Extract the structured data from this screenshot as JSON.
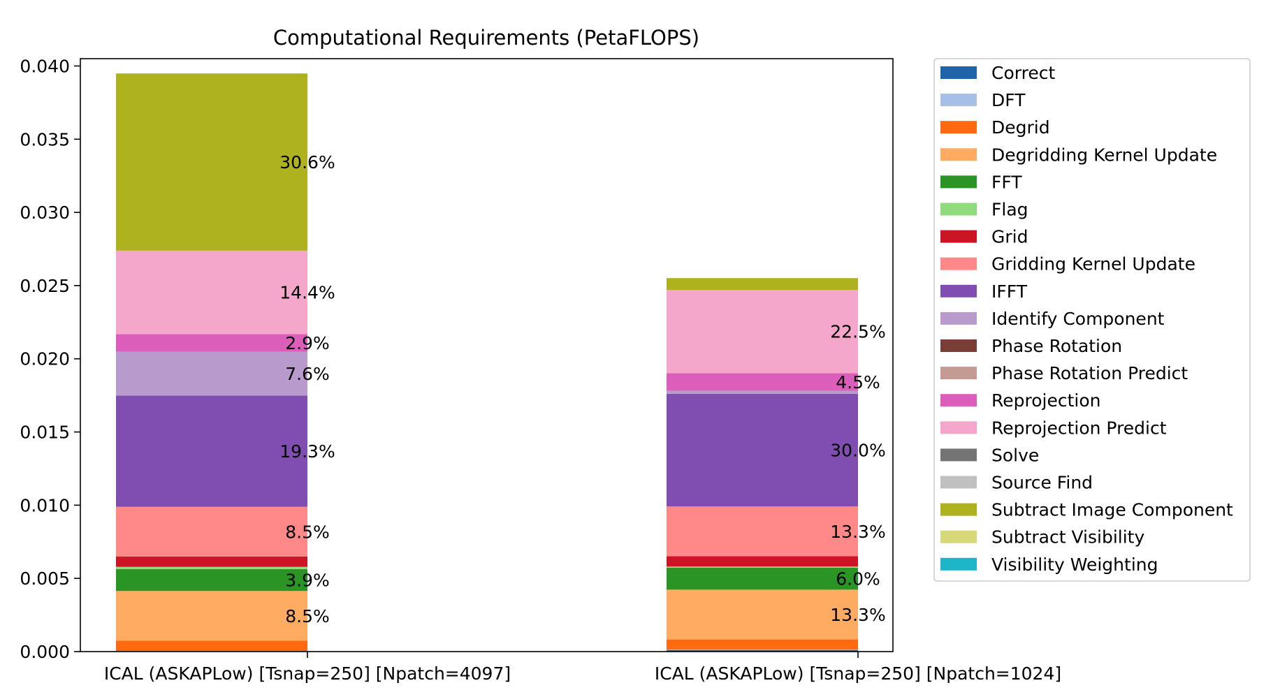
{
  "chart_data": {
    "type": "bar",
    "stacked": true,
    "title": "Computational Requirements (PetaFLOPS)",
    "xlabel": "",
    "ylabel": "",
    "ylim": [
      0,
      0.0405
    ],
    "yticks": [
      "0.000",
      "0.005",
      "0.010",
      "0.015",
      "0.020",
      "0.025",
      "0.030",
      "0.035",
      "0.040"
    ],
    "grid": false,
    "legend_position": "outside-right",
    "categories": [
      "ICAL (ASKAPLow) [Tsnap=250] [Npatch=4097]",
      "ICAL (ASKAPLow) [Tsnap=250] [Npatch=1024]"
    ],
    "series": [
      {
        "name": "Correct",
        "color": "#1f63a8",
        "values": [
          2e-05,
          0.0001
        ]
      },
      {
        "name": "DFT",
        "color": "#a5bfe6",
        "values": [
          2e-05,
          3e-05
        ]
      },
      {
        "name": "Degrid",
        "color": "#ff6a10",
        "values": [
          0.0007,
          0.0007
        ]
      },
      {
        "name": "Degridding Kernel Update",
        "color": "#ffac62",
        "values": [
          0.0034,
          0.0034
        ]
      },
      {
        "name": "FFT",
        "color": "#2a9424",
        "values": [
          0.0015,
          0.0015
        ]
      },
      {
        "name": "Flag",
        "color": "#8fdb7e",
        "values": [
          0.00015,
          8e-05
        ]
      },
      {
        "name": "Grid",
        "color": "#cc1424",
        "values": [
          0.0007,
          0.0007
        ]
      },
      {
        "name": "Gridding Kernel Update",
        "color": "#ff8888",
        "values": [
          0.0034,
          0.0034
        ]
      },
      {
        "name": "IFFT",
        "color": "#804eb0",
        "values": [
          0.0076,
          0.0077
        ]
      },
      {
        "name": "Identify Component",
        "color": "#b89bcc",
        "values": [
          0.003,
          0.0002
        ]
      },
      {
        "name": "Phase Rotation",
        "color": "#7a3e36",
        "values": [
          0.0,
          0.0
        ]
      },
      {
        "name": "Phase Rotation Predict",
        "color": "#c49a93",
        "values": [
          0.0,
          0.0
        ]
      },
      {
        "name": "Reprojection",
        "color": "#dc5ebb",
        "values": [
          0.0012,
          0.0012
        ]
      },
      {
        "name": "Reprojection Predict",
        "color": "#f4a6cb",
        "values": [
          0.0057,
          0.0057
        ]
      },
      {
        "name": "Solve",
        "color": "#747474",
        "values": [
          0.0,
          0.0
        ]
      },
      {
        "name": "Source Find",
        "color": "#c0c0c0",
        "values": [
          0.0,
          0.0
        ]
      },
      {
        "name": "Subtract Image Component",
        "color": "#adb21e",
        "values": [
          0.0121,
          0.0008
        ]
      },
      {
        "name": "Subtract Visibility",
        "color": "#d7d87a",
        "values": [
          0.0,
          0.0
        ]
      },
      {
        "name": "Visibility Weighting",
        "color": "#1fb5c8",
        "values": [
          0.0,
          0.0
        ]
      }
    ],
    "bar_labels": [
      [
        {
          "series": "Degridding Kernel Update",
          "text": "8.5%"
        },
        {
          "series": "FFT",
          "text": "3.9%"
        },
        {
          "series": "Gridding Kernel Update",
          "text": "8.5%"
        },
        {
          "series": "IFFT",
          "text": "19.3%"
        },
        {
          "series": "Identify Component",
          "text": "7.6%"
        },
        {
          "series": "Reprojection",
          "text": "2.9%"
        },
        {
          "series": "Reprojection Predict",
          "text": "14.4%"
        },
        {
          "series": "Subtract Image Component",
          "text": "30.6%"
        }
      ],
      [
        {
          "series": "Degridding Kernel Update",
          "text": "13.3%"
        },
        {
          "series": "FFT",
          "text": "6.0%"
        },
        {
          "series": "Gridding Kernel Update",
          "text": "13.3%"
        },
        {
          "series": "IFFT",
          "text": "30.0%"
        },
        {
          "series": "Reprojection",
          "text": "4.5%"
        },
        {
          "series": "Reprojection Predict",
          "text": "22.5%"
        }
      ]
    ]
  }
}
